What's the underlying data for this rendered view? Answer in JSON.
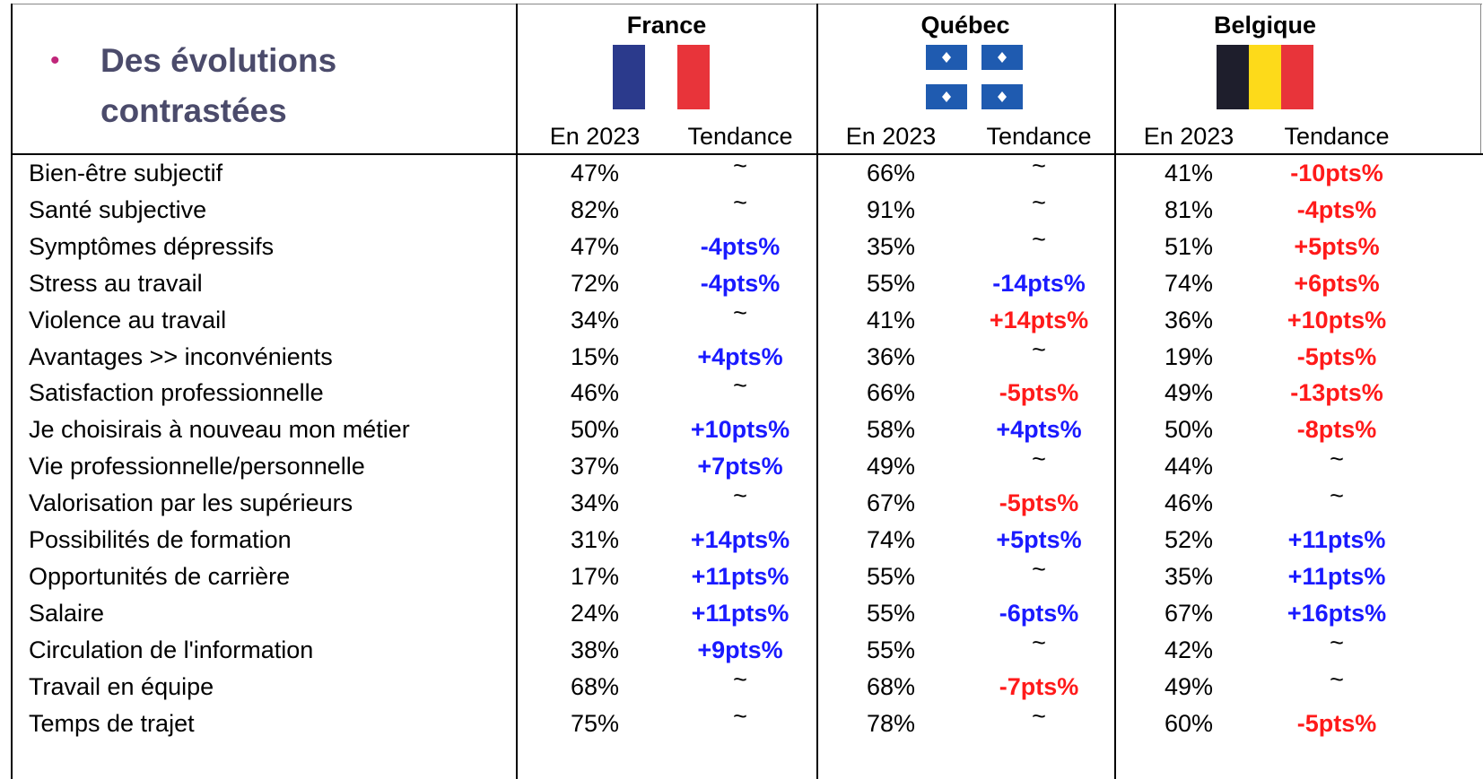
{
  "header": {
    "title": "Des évolutions contrastées",
    "countries": [
      {
        "name": "France",
        "columns": [
          "En 2023",
          "Tendance"
        ]
      },
      {
        "name": "Québec",
        "columns": [
          "En 2023",
          "Tendance"
        ]
      },
      {
        "name": "Belgique",
        "columns": [
          "En 2023",
          "Tendance"
        ]
      }
    ]
  },
  "trend_colors": {
    "positive": "#1a1aff",
    "negative": "#ff1a1a"
  },
  "table": {
    "rows": [
      {
        "label": "Bien-être subjectif",
        "cells": [
          "47%",
          "~",
          "66%",
          "~",
          "41%",
          {
            "text": "-10pts%",
            "color": "negative"
          }
        ]
      },
      {
        "label": "Santé subjective",
        "cells": [
          "82%",
          "~",
          "91%",
          "~",
          "81%",
          {
            "text": "-4pts%",
            "color": "negative"
          }
        ]
      },
      {
        "label": "Symptômes dépressifs",
        "cells": [
          "47%",
          {
            "text": "-4pts%",
            "color": "positive"
          },
          "35%",
          "~",
          "51%",
          {
            "text": "+5pts%",
            "color": "negative"
          }
        ]
      },
      {
        "label": "Stress au travail",
        "cells": [
          "72%",
          {
            "text": "-4pts%",
            "color": "positive"
          },
          "55%",
          {
            "text": "-14pts%",
            "color": "positive"
          },
          "74%",
          {
            "text": "+6pts%",
            "color": "negative"
          }
        ]
      },
      {
        "label": "Violence au travail",
        "cells": [
          "34%",
          "~",
          "41%",
          {
            "text": "+14pts%",
            "color": "negative"
          },
          "36%",
          {
            "text": "+10pts%",
            "color": "negative"
          }
        ]
      },
      {
        "label": "Avantages >> inconvénients",
        "cells": [
          "15%",
          {
            "text": "+4pts%",
            "color": "positive"
          },
          "36%",
          "~",
          "19%",
          {
            "text": "-5pts%",
            "color": "negative"
          }
        ]
      },
      {
        "label": "Satisfaction professionnelle",
        "cells": [
          "46%",
          "~",
          "66%",
          {
            "text": "-5pts%",
            "color": "negative"
          },
          "49%",
          {
            "text": "-13pts%",
            "color": "negative"
          }
        ]
      },
      {
        "label": "Je choisirais à nouveau mon métier",
        "cells": [
          "50%",
          {
            "text": "+10pts%",
            "color": "positive"
          },
          "58%",
          {
            "text": "+4pts%",
            "color": "positive"
          },
          "50%",
          {
            "text": "-8pts%",
            "color": "negative"
          }
        ]
      },
      {
        "label": "Vie professionnelle/personnelle",
        "cells": [
          "37%",
          {
            "text": "+7pts%",
            "color": "positive"
          },
          "49%",
          "~",
          "44%",
          "~"
        ]
      },
      {
        "label": "Valorisation par les supérieurs",
        "cells": [
          "34%",
          "~",
          "67%",
          {
            "text": "-5pts%",
            "color": "negative"
          },
          "46%",
          "~"
        ]
      },
      {
        "label": "Possibilités de formation",
        "cells": [
          "31%",
          {
            "text": "+14pts%",
            "color": "positive"
          },
          "74%",
          {
            "text": "+5pts%",
            "color": "positive"
          },
          "52%",
          {
            "text": "+11pts%",
            "color": "positive"
          }
        ]
      },
      {
        "label": "Opportunités de carrière",
        "cells": [
          "17%",
          {
            "text": "+11pts%",
            "color": "positive"
          },
          "55%",
          "~",
          "35%",
          {
            "text": "+11pts%",
            "color": "positive"
          }
        ]
      },
      {
        "label": "Salaire",
        "cells": [
          "24%",
          {
            "text": "+11pts%",
            "color": "positive"
          },
          "55%",
          {
            "text": "-6pts%",
            "color": "positive"
          },
          "67%",
          {
            "text": "+16pts%",
            "color": "positive"
          }
        ]
      },
      {
        "label": "Circulation de l'information",
        "cells": [
          "38%",
          {
            "text": "+9pts%",
            "color": "positive"
          },
          "55%",
          "~",
          "42%",
          "~"
        ]
      },
      {
        "label": "Travail en équipe",
        "cells": [
          "68%",
          "~",
          "68%",
          {
            "text": "-7pts%",
            "color": "negative"
          },
          "49%",
          "~"
        ]
      },
      {
        "label": "Temps de trajet",
        "cells": [
          "75%",
          "~",
          "78%",
          "~",
          "60%",
          {
            "text": "-5pts%",
            "color": "negative"
          }
        ]
      }
    ]
  }
}
